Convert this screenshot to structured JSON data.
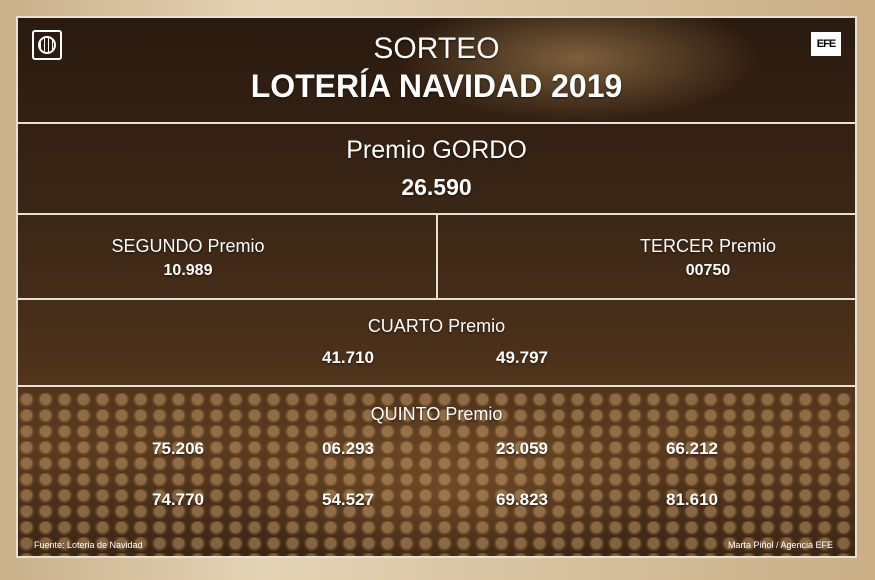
{
  "header": {
    "line1": "SORTEO",
    "line2": "LOTERÍA NAVIDAD 2019",
    "logo_right": "EFE"
  },
  "gordo": {
    "label": "Premio GORDO",
    "number": "26.590"
  },
  "segundo": {
    "label": "SEGUNDO Premio",
    "number": "10.989"
  },
  "tercer": {
    "label": "TERCER Premio",
    "number": "00750"
  },
  "cuarto": {
    "label": "CUARTO Premio",
    "numbers": [
      "41.710",
      "49.797"
    ]
  },
  "quinto": {
    "label": "QUINTO Premio",
    "numbers": [
      "75.206",
      "06.293",
      "23.059",
      "66.212",
      "74.770",
      "54.527",
      "69.823",
      "81.610"
    ]
  },
  "footer": {
    "source": "Fuente: Loteria de Navidad",
    "credit": "Marta Piñol / Agencia EFE"
  }
}
